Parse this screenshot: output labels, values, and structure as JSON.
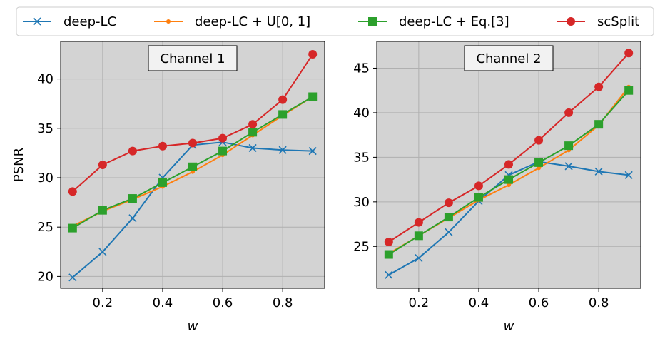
{
  "legend": {
    "placement": "top-center",
    "entries": [
      {
        "label": "deep-LC",
        "color": "#1f77b4",
        "marker": "x"
      },
      {
        "label": "deep-LC + U[0, 1]",
        "color": "#ff7f0e",
        "marker": "small-circle"
      },
      {
        "label": "deep-LC + Eq.[3]",
        "color": "#2ca02c",
        "marker": "square"
      },
      {
        "label": "scSplit",
        "color": "#d62728",
        "marker": "circle"
      }
    ]
  },
  "chart_data": [
    {
      "type": "line",
      "title": "Channel 1",
      "xlabel": "w",
      "ylabel": "PSNR",
      "xlim": [
        0.06,
        0.94
      ],
      "ylim": [
        18.8,
        43.8
      ],
      "xticks": [
        0.2,
        0.4,
        0.6,
        0.8
      ],
      "yticks": [
        20,
        25,
        30,
        35,
        40
      ],
      "grid": true,
      "background": "#d3d3d3",
      "x": [
        0.1,
        0.2,
        0.3,
        0.4,
        0.5,
        0.6,
        0.7,
        0.8,
        0.9
      ],
      "series": [
        {
          "name": "deep-LC",
          "color": "#1f77b4",
          "marker": "x",
          "values": [
            19.9,
            22.5,
            25.9,
            30.0,
            33.3,
            33.6,
            33.0,
            32.8,
            32.7
          ]
        },
        {
          "name": "deep-LC + U[0, 1]",
          "color": "#ff7f0e",
          "marker": "small-circle",
          "values": [
            25.1,
            26.6,
            27.8,
            29.1,
            30.6,
            32.3,
            34.3,
            36.3,
            38.2
          ]
        },
        {
          "name": "deep-LC + Eq.[3]",
          "color": "#2ca02c",
          "marker": "square",
          "values": [
            24.9,
            26.7,
            27.9,
            29.5,
            31.1,
            32.7,
            34.6,
            36.4,
            38.2
          ]
        },
        {
          "name": "scSplit",
          "color": "#d62728",
          "marker": "circle",
          "values": [
            28.6,
            31.3,
            32.7,
            33.2,
            33.5,
            34.0,
            35.4,
            37.9,
            42.5
          ]
        }
      ]
    },
    {
      "type": "line",
      "title": "Channel 2",
      "xlabel": "w",
      "ylabel": "",
      "xlim": [
        0.06,
        0.94
      ],
      "ylim": [
        20.3,
        48.0
      ],
      "xticks": [
        0.2,
        0.4,
        0.6,
        0.8
      ],
      "yticks": [
        25,
        30,
        35,
        40,
        45
      ],
      "grid": true,
      "background": "#d3d3d3",
      "x": [
        0.1,
        0.2,
        0.3,
        0.4,
        0.5,
        0.6,
        0.7,
        0.8,
        0.9
      ],
      "series": [
        {
          "name": "deep-LC",
          "color": "#1f77b4",
          "marker": "x",
          "values": [
            21.8,
            23.7,
            26.6,
            30.1,
            33.0,
            34.5,
            34.0,
            33.4,
            33.0
          ]
        },
        {
          "name": "deep-LC + U[0, 1]",
          "color": "#ff7f0e",
          "marker": "small-circle",
          "values": [
            24.2,
            26.2,
            28.2,
            30.2,
            31.9,
            33.8,
            35.8,
            38.6,
            42.9
          ]
        },
        {
          "name": "deep-LC + Eq.[3]",
          "color": "#2ca02c",
          "marker": "square",
          "values": [
            24.1,
            26.2,
            28.3,
            30.5,
            32.5,
            34.4,
            36.3,
            38.7,
            42.5
          ]
        },
        {
          "name": "scSplit",
          "color": "#d62728",
          "marker": "circle",
          "values": [
            25.5,
            27.7,
            29.9,
            31.8,
            34.2,
            36.9,
            40.0,
            42.9,
            46.7
          ]
        }
      ]
    }
  ]
}
